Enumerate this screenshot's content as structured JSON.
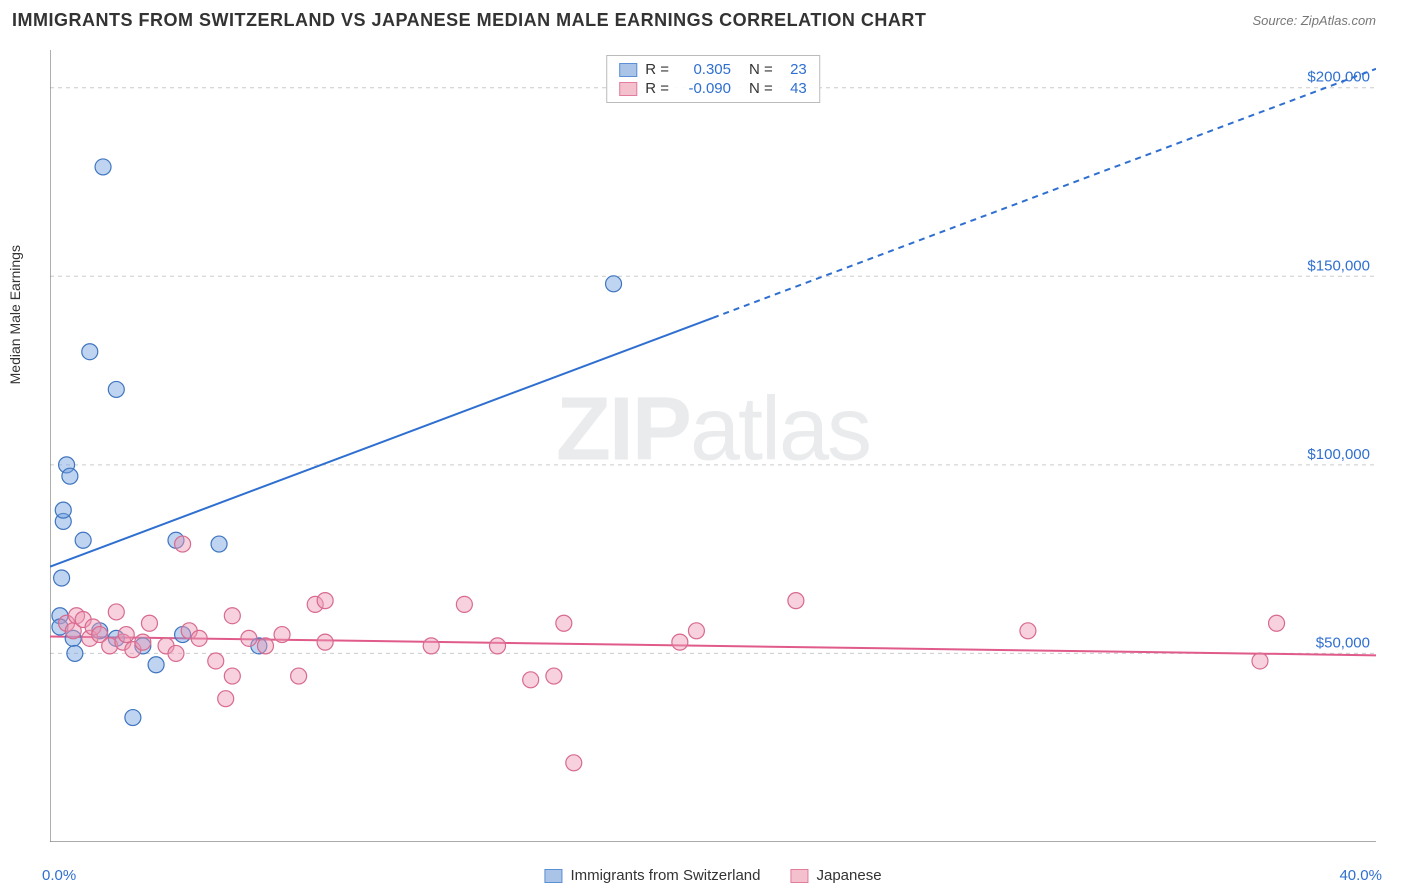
{
  "header": {
    "title": "IMMIGRANTS FROM SWITZERLAND VS JAPANESE MEDIAN MALE EARNINGS CORRELATION CHART",
    "source": "Source: ZipAtlas.com"
  },
  "chart": {
    "type": "scatter",
    "y_axis_label": "Median Male Earnings",
    "xlim": [
      0,
      40
    ],
    "ylim": [
      0,
      210000
    ],
    "x_tick_labels": {
      "min": "0.0%",
      "max": "40.0%"
    },
    "x_tick_positions": [
      0,
      5,
      10,
      15,
      20,
      25,
      40
    ],
    "y_gridlines": [
      50000,
      100000,
      150000,
      200000
    ],
    "y_tick_labels": [
      "$50,000",
      "$100,000",
      "$150,000",
      "$200,000"
    ],
    "axis_color": "#777777",
    "grid_color": "#cccccc",
    "grid_dash": "4,4",
    "background_color": "#ffffff",
    "tick_label_color": "#2f6fd0",
    "watermark": {
      "part1": "ZIP",
      "part2": "atlas"
    },
    "stats_legend": [
      {
        "swatch_fill": "#aac4e8",
        "swatch_stroke": "#5b8fd6",
        "r_label": "R =",
        "r_value": "0.305",
        "n_label": "N =",
        "n_value": "23"
      },
      {
        "swatch_fill": "#f4c0cd",
        "swatch_stroke": "#e37da0",
        "r_label": "R =",
        "r_value": "-0.090",
        "n_label": "N =",
        "n_value": "43"
      }
    ],
    "series_legend": [
      {
        "swatch_fill": "#aac4e8",
        "swatch_stroke": "#5b8fd6",
        "label": "Immigrants from Switzerland"
      },
      {
        "swatch_fill": "#f4c0cd",
        "swatch_stroke": "#e37da0",
        "label": "Japanese"
      }
    ],
    "marker_radius": 8,
    "marker_fill_opacity": 0.45,
    "series": [
      {
        "name": "Immigrants from Switzerland",
        "color_fill": "#6f9fde",
        "color_stroke": "#3f75c0",
        "trend": {
          "x1": 0,
          "y1": 73000,
          "x2": 40,
          "y2": 205000,
          "solid_until_x": 20,
          "stroke": "#2f6fd0",
          "width": 2,
          "dash": "6,5"
        },
        "points": [
          [
            0.3,
            60000
          ],
          [
            0.3,
            57000
          ],
          [
            0.35,
            70000
          ],
          [
            0.4,
            85000
          ],
          [
            0.4,
            88000
          ],
          [
            0.5,
            100000
          ],
          [
            0.6,
            97000
          ],
          [
            0.7,
            54000
          ],
          [
            0.75,
            50000
          ],
          [
            1.0,
            80000
          ],
          [
            1.2,
            130000
          ],
          [
            1.5,
            56000
          ],
          [
            1.6,
            179000
          ],
          [
            2.0,
            120000
          ],
          [
            2.0,
            54000
          ],
          [
            2.5,
            33000
          ],
          [
            2.8,
            52000
          ],
          [
            3.2,
            47000
          ],
          [
            3.8,
            80000
          ],
          [
            4.0,
            55000
          ],
          [
            5.1,
            79000
          ],
          [
            6.3,
            52000
          ],
          [
            17.0,
            148000
          ]
        ]
      },
      {
        "name": "Japanese",
        "color_fill": "#ed9ab3",
        "color_stroke": "#d86a8f",
        "trend": {
          "x1": 0,
          "y1": 54500,
          "x2": 40,
          "y2": 49500,
          "solid_until_x": 40,
          "stroke": "#e05a8a",
          "width": 2,
          "dash": ""
        },
        "points": [
          [
            0.5,
            58000
          ],
          [
            0.7,
            56000
          ],
          [
            0.8,
            60000
          ],
          [
            1.0,
            59000
          ],
          [
            1.2,
            54000
          ],
          [
            1.3,
            57000
          ],
          [
            1.5,
            55000
          ],
          [
            1.8,
            52000
          ],
          [
            2.0,
            61000
          ],
          [
            2.2,
            53000
          ],
          [
            2.3,
            55000
          ],
          [
            2.5,
            51000
          ],
          [
            2.8,
            53000
          ],
          [
            3.0,
            58000
          ],
          [
            3.5,
            52000
          ],
          [
            3.8,
            50000
          ],
          [
            4.0,
            79000
          ],
          [
            4.2,
            56000
          ],
          [
            4.5,
            54000
          ],
          [
            5.0,
            48000
          ],
          [
            5.3,
            38000
          ],
          [
            5.5,
            44000
          ],
          [
            5.5,
            60000
          ],
          [
            6.0,
            54000
          ],
          [
            6.5,
            52000
          ],
          [
            7.0,
            55000
          ],
          [
            7.5,
            44000
          ],
          [
            8.0,
            63000
          ],
          [
            8.3,
            64000
          ],
          [
            8.3,
            53000
          ],
          [
            11.5,
            52000
          ],
          [
            12.5,
            63000
          ],
          [
            13.5,
            52000
          ],
          [
            14.5,
            43000
          ],
          [
            15.2,
            44000
          ],
          [
            15.5,
            58000
          ],
          [
            15.8,
            21000
          ],
          [
            19.0,
            53000
          ],
          [
            19.5,
            56000
          ],
          [
            22.5,
            64000
          ],
          [
            29.5,
            56000
          ],
          [
            36.5,
            48000
          ],
          [
            37.0,
            58000
          ]
        ]
      }
    ]
  }
}
